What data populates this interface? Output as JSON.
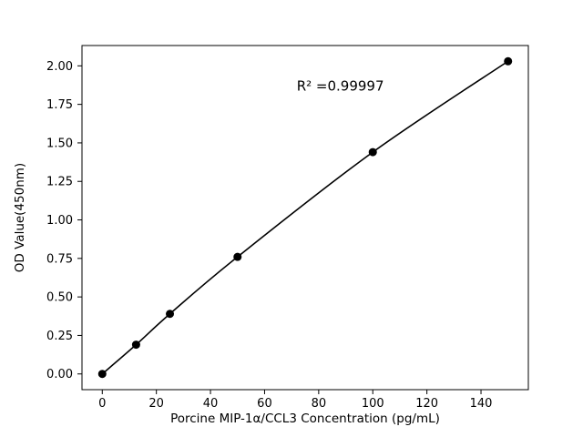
{
  "figure": {
    "background": "#ffffff"
  },
  "chart_data": {
    "type": "line",
    "title": "",
    "xlabel": "Porcine MIP-1α/CCL3 Concentration (pg/mL)",
    "ylabel": "OD Value(450nm)",
    "x": [
      0,
      12.5,
      25,
      50,
      100,
      150
    ],
    "y": [
      0.0,
      0.19,
      0.39,
      0.76,
      1.44,
      2.03
    ],
    "xlim": [
      -7.5,
      157.5
    ],
    "ylim": [
      -0.102,
      2.132
    ],
    "xticks": [
      0,
      20,
      40,
      60,
      80,
      100,
      120,
      140
    ],
    "xtick_labels": [
      "0",
      "20",
      "40",
      "60",
      "80",
      "100",
      "120",
      "140"
    ],
    "yticks": [
      0,
      0.25,
      0.5,
      0.75,
      1.0,
      1.25,
      1.5,
      1.75,
      2.0
    ],
    "ytick_labels": [
      "0.00",
      "0.25",
      "0.50",
      "0.75",
      "1.00",
      "1.25",
      "1.50",
      "1.75",
      "2.00"
    ],
    "annotation": {
      "text": "R² =0.99997",
      "x": 88,
      "y": 1.84
    },
    "line_color": "#000000",
    "marker_color": "#000000",
    "grid": false
  }
}
